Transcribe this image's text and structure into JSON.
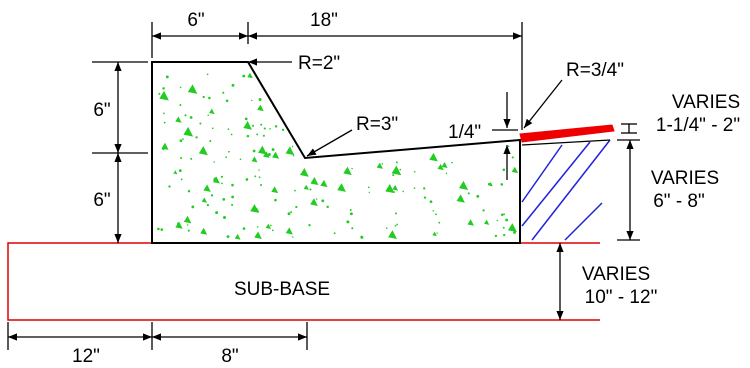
{
  "dims": {
    "top_left": "6\"",
    "top_right": "18\"",
    "left_upper": "6\"",
    "left_lower": "6\"",
    "bottom_left": "12\"",
    "bottom_right": "8\""
  },
  "radii": {
    "r_top": "R=2\"",
    "r_mid": "R=3\"",
    "r_edge": "R=3/4\""
  },
  "slope": {
    "label": "1/4\""
  },
  "notes": {
    "overlay_varies": "VARIES",
    "overlay_range": "1-1/4\" - 2\"",
    "fill_varies": "VARIES",
    "fill_range": "6\" - 8\"",
    "sub_varies": "VARIES",
    "sub_range": "10\" - 12\""
  },
  "subbase": {
    "label": "SUB-BASE"
  },
  "colors": {
    "concrete_speckle": "#22cc22",
    "overlay": "#ee0000",
    "hatch": "#2222dd",
    "subbase_line": "#dd0000",
    "line": "#000000"
  }
}
